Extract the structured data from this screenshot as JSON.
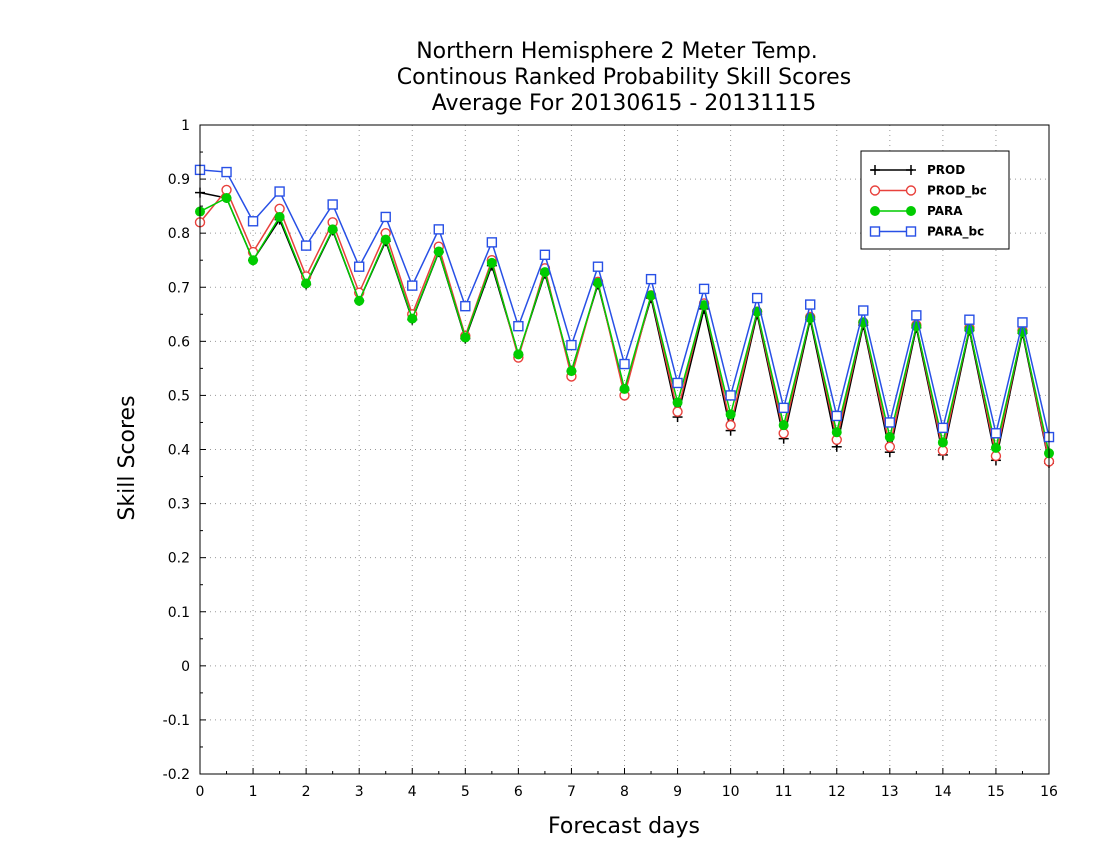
{
  "chart_data": {
    "type": "line",
    "title_lines": [
      "Northern Hemisphere 2 Meter Temp.",
      "Continous Ranked Probability Skill Scores",
      "Average For 20130615 - 20131115"
    ],
    "xlabel": "Forecast days",
    "ylabel": "Skill Scores",
    "xlim": [
      0,
      16
    ],
    "ylim": [
      -0.2,
      1
    ],
    "x_ticks": [
      "0",
      "1",
      "2",
      "3",
      "4",
      "5",
      "6",
      "7",
      "8",
      "9",
      "10",
      "11",
      "12",
      "13",
      "14",
      "15",
      "16"
    ],
    "y_ticks": [
      "1",
      "0.9",
      "0.8",
      "0.7",
      "0.6",
      "0.5",
      "0.4",
      "0.3",
      "0.2",
      "0.1",
      "0",
      "-0.1",
      "-0.2"
    ],
    "grid": true,
    "legend_position": "top-right",
    "x": [
      0,
      0.5,
      1,
      1.5,
      2,
      2.5,
      3,
      3.5,
      4,
      4.5,
      5,
      5.5,
      6,
      6.5,
      7,
      7.5,
      8,
      8.5,
      9,
      9.5,
      10,
      10.5,
      11,
      11.5,
      12,
      12.5,
      13,
      13.5,
      14,
      14.5,
      15,
      15.5,
      16
    ],
    "series": [
      {
        "name": "PROD",
        "color": "#000000",
        "marker": "plus",
        "values": [
          0.875,
          0.865,
          0.75,
          0.825,
          0.705,
          0.805,
          0.675,
          0.785,
          0.64,
          0.765,
          0.605,
          0.74,
          0.575,
          0.725,
          0.545,
          0.705,
          0.51,
          0.68,
          0.46,
          0.66,
          0.435,
          0.65,
          0.42,
          0.64,
          0.405,
          0.63,
          0.395,
          0.625,
          0.39,
          0.62,
          0.38,
          0.615,
          0.375
        ]
      },
      {
        "name": "PROD_bc",
        "color": "#e8413c",
        "marker": "circle-open",
        "values": [
          0.82,
          0.88,
          0.765,
          0.845,
          0.72,
          0.82,
          0.69,
          0.8,
          0.65,
          0.775,
          0.61,
          0.75,
          0.57,
          0.735,
          0.535,
          0.71,
          0.5,
          0.685,
          0.47,
          0.67,
          0.445,
          0.655,
          0.43,
          0.645,
          0.418,
          0.635,
          0.405,
          0.63,
          0.398,
          0.625,
          0.388,
          0.62,
          0.378
        ]
      },
      {
        "name": "PARA",
        "color": "#00cc00",
        "marker": "circle-filled",
        "values": [
          0.84,
          0.865,
          0.75,
          0.83,
          0.707,
          0.807,
          0.675,
          0.788,
          0.642,
          0.766,
          0.607,
          0.745,
          0.576,
          0.728,
          0.545,
          0.708,
          0.512,
          0.685,
          0.487,
          0.667,
          0.465,
          0.655,
          0.445,
          0.643,
          0.432,
          0.635,
          0.423,
          0.628,
          0.413,
          0.622,
          0.403,
          0.617,
          0.393
        ]
      },
      {
        "name": "PARA_bc",
        "color": "#2850e6",
        "marker": "square-open",
        "values": [
          0.917,
          0.913,
          0.822,
          0.877,
          0.777,
          0.853,
          0.738,
          0.83,
          0.703,
          0.807,
          0.665,
          0.783,
          0.628,
          0.76,
          0.593,
          0.738,
          0.558,
          0.715,
          0.523,
          0.697,
          0.5,
          0.68,
          0.477,
          0.668,
          0.462,
          0.657,
          0.45,
          0.648,
          0.44,
          0.64,
          0.43,
          0.635,
          0.423
        ]
      }
    ]
  }
}
